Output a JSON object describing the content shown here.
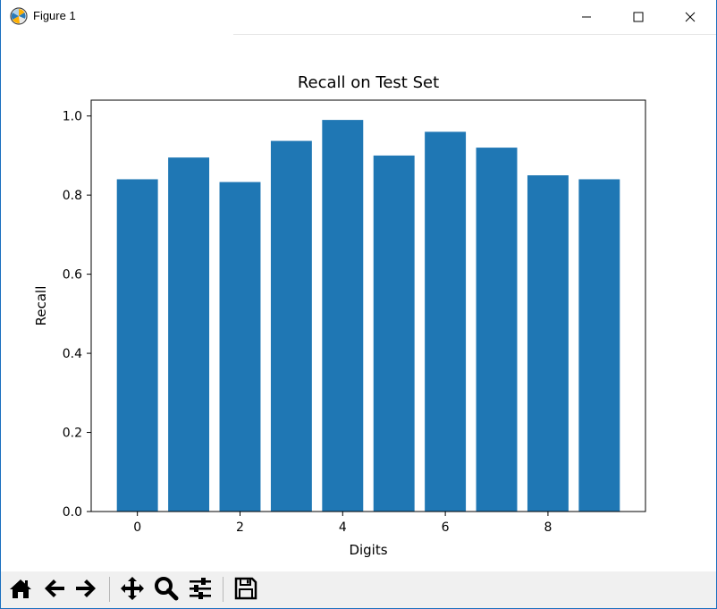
{
  "window": {
    "title": "Figure 1",
    "icons": [
      "matplotlib-logo-icon",
      "minimize-icon",
      "maximize-icon",
      "close-icon"
    ]
  },
  "toolbar": {
    "tools": [
      "home-icon",
      "back-arrow-icon",
      "forward-arrow-icon",
      "pan-icon",
      "zoom-icon",
      "configure-subplots-icon",
      "save-icon"
    ]
  },
  "chart_data": {
    "type": "bar",
    "title": "Recall on Test Set",
    "xlabel": "Digits",
    "ylabel": "Recall",
    "x": [
      0,
      1,
      2,
      3,
      4,
      5,
      6,
      7,
      8,
      9
    ],
    "values": [
      0.84,
      0.895,
      0.833,
      0.937,
      0.99,
      0.9,
      0.96,
      0.92,
      0.85,
      0.84
    ],
    "xticks": [
      "0",
      "2",
      "4",
      "6",
      "8"
    ],
    "yticks": [
      "0.0",
      "0.2",
      "0.4",
      "0.6",
      "0.8",
      "1.0"
    ],
    "xlim": [
      -0.9,
      9.9
    ],
    "ylim": [
      0,
      1.04
    ],
    "bar_color": "#1f77b4",
    "grid": false
  }
}
